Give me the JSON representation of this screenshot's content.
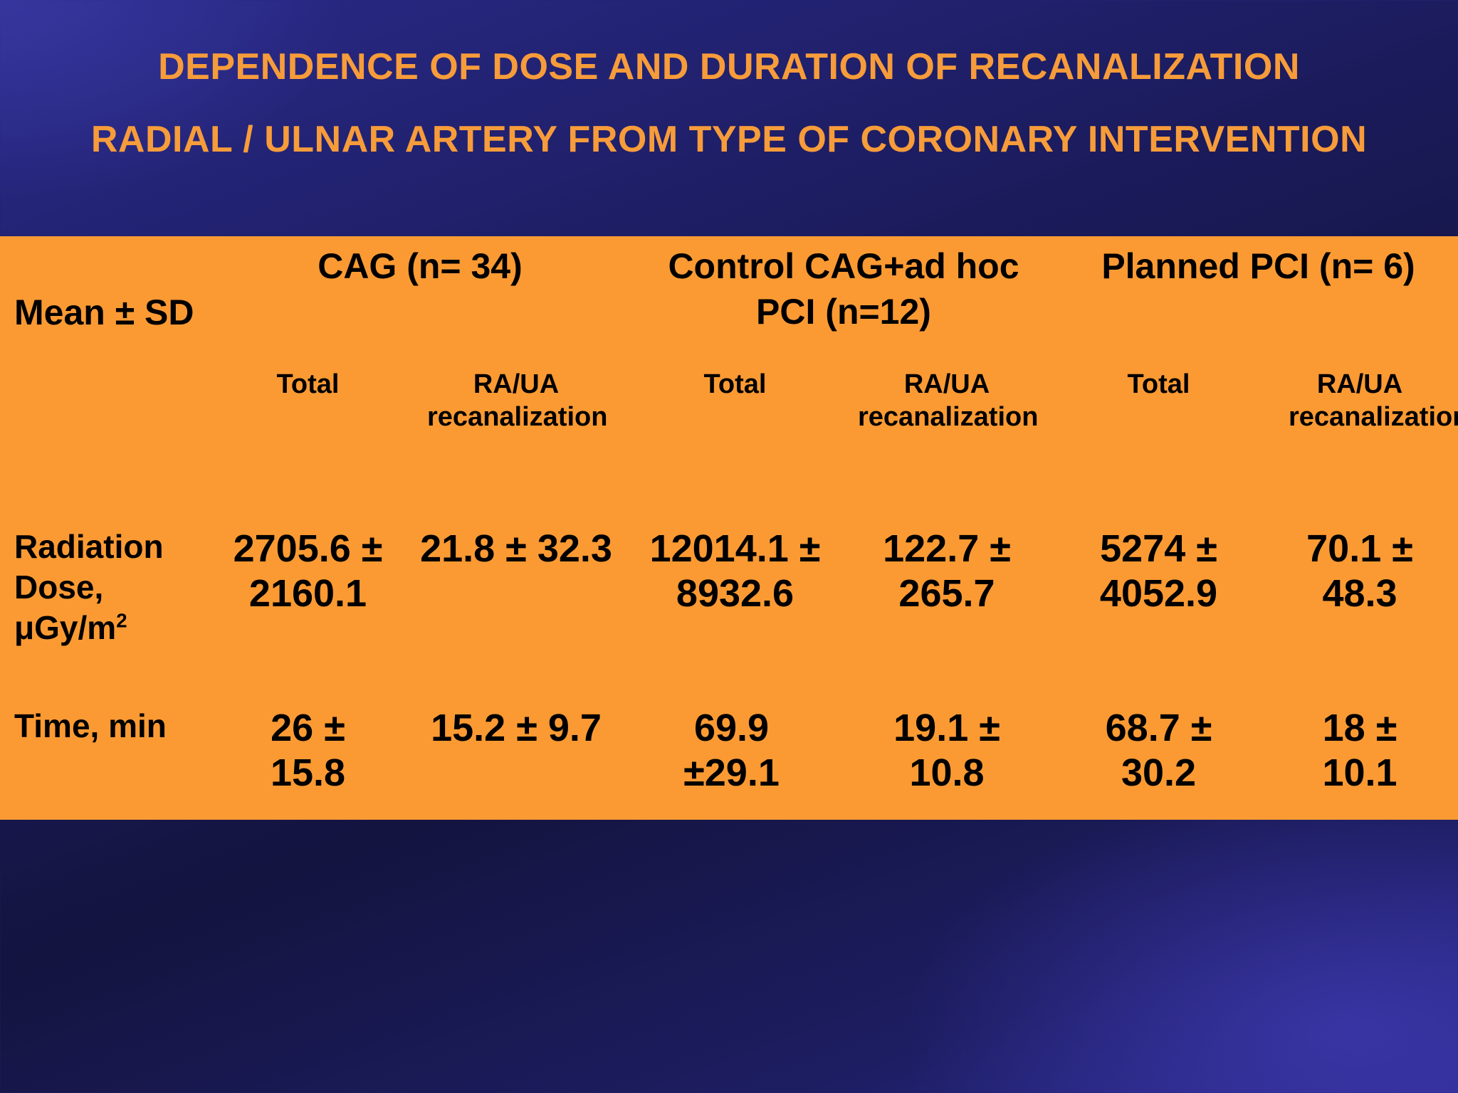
{
  "title": {
    "line1": "DEPENDENCE OF DOSE AND DURATION OF RECANALIZATION",
    "line2": "RADIAL / ULNAR ARTERY FROM TYPE OF CORONARY INTERVENTION"
  },
  "table": {
    "corner_label": "Mean ± SD",
    "groups": [
      {
        "label": "CAG (n= 34)"
      },
      {
        "label": "Control CAG+ad hoc PCI (n=12)"
      },
      {
        "label": "Planned PCI (n= 6)"
      }
    ],
    "subheaders": [
      "Total",
      "RA/UA recanalization",
      "Total",
      "RA/UA recanalization",
      "Total",
      "RA/UA recanalization"
    ],
    "rows": [
      {
        "label": "Radiation Dose, μGy/m",
        "label_sup": "2",
        "values": [
          "2705.6 ± 2160.1",
          "21.8 ± 32.3",
          "12014.1 ± 8932.6",
          "122.7 ± 265.7",
          "5274 ± 4052.9",
          "70.1 ± 48.3"
        ]
      },
      {
        "label": "Time, min",
        "values": [
          "26 ± 15.8",
          "15.2 ± 9.7",
          "69.9 ±29.1",
          "19.1 ± 10.8",
          "68.7 ± 30.2",
          "18 ± 10.1"
        ]
      }
    ]
  },
  "colors": {
    "background": "#1b1b5c",
    "title": "#f79c3a",
    "panel": "#fb9a33",
    "text": "#000000"
  }
}
